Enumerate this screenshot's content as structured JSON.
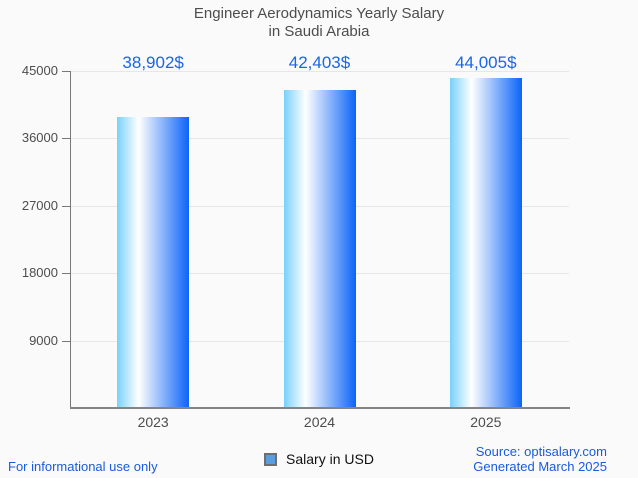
{
  "title": {
    "line1": "Engineer Aerodynamics Yearly Salary",
    "line2": "in Saudi Arabia"
  },
  "chart_data": {
    "type": "bar",
    "categories": [
      "2023",
      "2024",
      "2025"
    ],
    "values": [
      38902,
      42403,
      44005
    ],
    "value_labels": [
      "38,902$",
      "42,403$",
      "44,005$"
    ],
    "series": [
      {
        "name": "Salary in USD",
        "values": [
          38902,
          42403,
          44005
        ]
      }
    ],
    "title": "Engineer Aerodynamics Yearly Salary in Saudi Arabia",
    "xlabel": "",
    "ylabel": "",
    "ylim": [
      0,
      45000
    ],
    "yticks": [
      9000,
      18000,
      27000,
      36000,
      45000
    ],
    "grid": "horizontal",
    "legend_position": "bottom-center"
  },
  "legend": {
    "label": "Salary in USD"
  },
  "footer": {
    "left": "For informational use only",
    "source": "Source: optisalary.com",
    "generated": "Generated March 2025"
  },
  "colors": {
    "background": "#fafafa",
    "title_text": "#4d4d4d",
    "axis_text": "#4d4d4d",
    "grid_line": "#e7e7e7",
    "axis_line": "#787878",
    "bar_gradient_left": "#79d1fb",
    "bar_gradient_mid": "#ffffff",
    "bar_gradient_right": "#0b64f8",
    "value_label": "#1b66e2",
    "footer_link": "#1a5ae0",
    "legend_swatch_fill": "#599fe0",
    "legend_swatch_border": "#6e6e6e"
  }
}
